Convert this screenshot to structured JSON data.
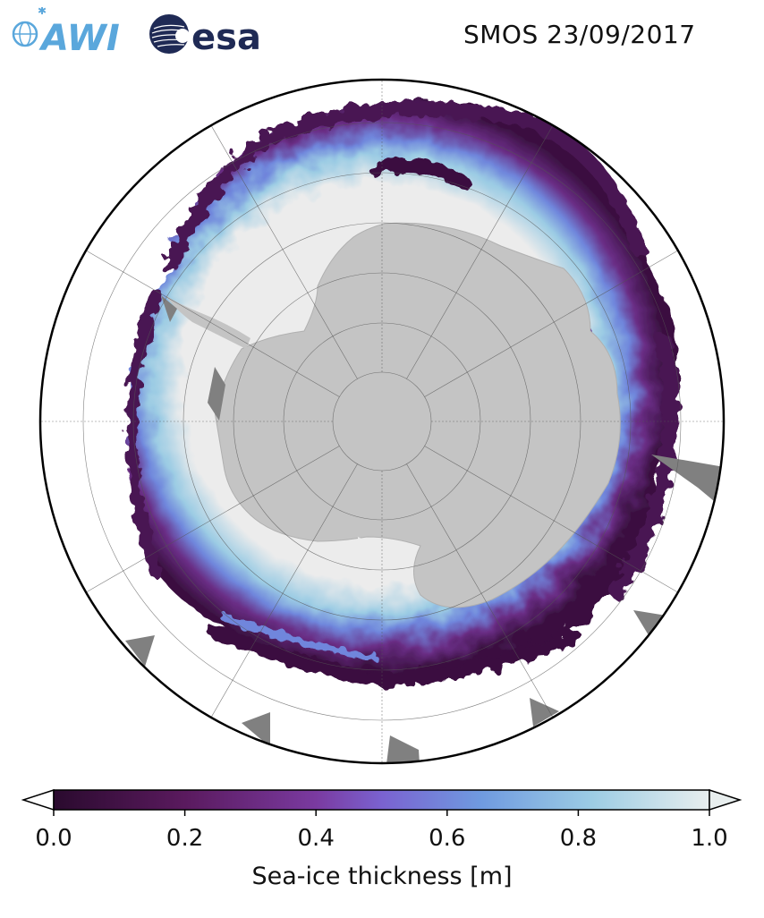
{
  "header": {
    "logo_left_text": "AWI",
    "logo_right_text": "esa",
    "title": "SMOS 23/09/2017"
  },
  "map": {
    "projection": "south-polar-stereographic",
    "land_color": "#c4c4c4",
    "thick_ice_color": "#ececec",
    "missing_data_color": "#808080",
    "graticule": true
  },
  "colorbar": {
    "label": "Sea-ice thickness [m]",
    "range": [
      0.0,
      1.0
    ],
    "extend": "both",
    "colormap": [
      "#2a0a2e",
      "#5a1a5e",
      "#7a3aa0",
      "#7a62d0",
      "#6f9ae0",
      "#9ccce4",
      "#e8eeee"
    ],
    "ticks": [
      {
        "value": 0.0,
        "label": "0.0"
      },
      {
        "value": 0.2,
        "label": "0.2"
      },
      {
        "value": 0.4,
        "label": "0.4"
      },
      {
        "value": 0.6,
        "label": "0.6"
      },
      {
        "value": 0.8,
        "label": "0.8"
      },
      {
        "value": 1.0,
        "label": "1.0"
      }
    ]
  }
}
